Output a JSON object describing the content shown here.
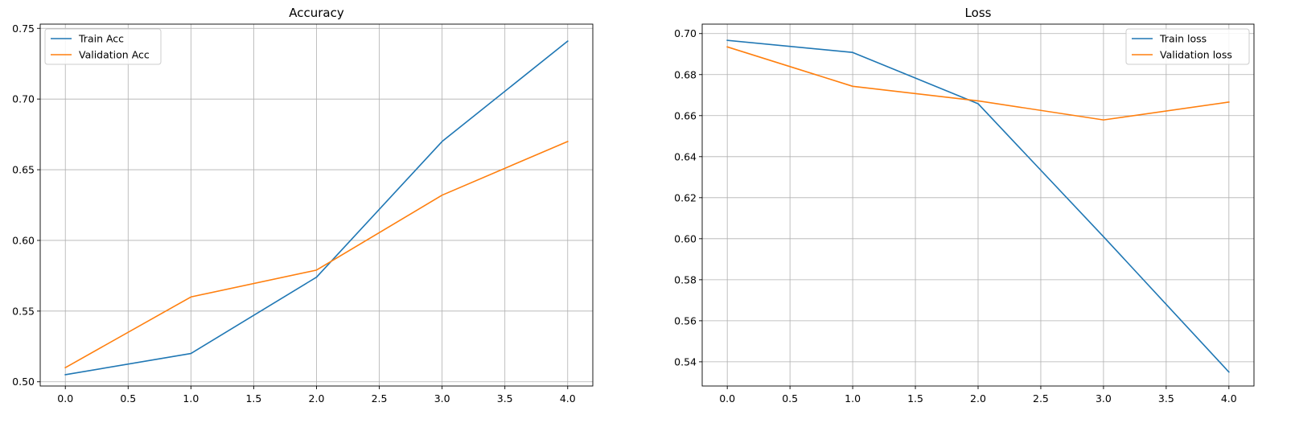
{
  "chart_data": [
    {
      "type": "line",
      "title": "Accuracy",
      "xlabel": "",
      "ylabel": "",
      "x": [
        0,
        1,
        2,
        3,
        4
      ],
      "series": [
        {
          "name": "Train Acc",
          "color": "#1f77b4",
          "values": [
            0.505,
            0.52,
            0.574,
            0.67,
            0.741
          ]
        },
        {
          "name": "Validation Acc",
          "color": "#ff7f0e",
          "values": [
            0.51,
            0.56,
            0.579,
            0.632,
            0.67
          ]
        }
      ],
      "xlim": [
        -0.2,
        4.2
      ],
      "ylim": [
        0.497,
        0.753
      ],
      "xticks": [
        0.0,
        0.5,
        1.0,
        1.5,
        2.0,
        2.5,
        3.0,
        3.5,
        4.0
      ],
      "xtick_labels": [
        "0.0",
        "0.5",
        "1.0",
        "1.5",
        "2.0",
        "2.5",
        "3.0",
        "3.5",
        "4.0"
      ],
      "yticks": [
        0.5,
        0.55,
        0.6,
        0.65,
        0.7,
        0.75
      ],
      "ytick_labels": [
        "0.50",
        "0.55",
        "0.60",
        "0.65",
        "0.70",
        "0.75"
      ],
      "grid": true,
      "legend_position": "top-left"
    },
    {
      "type": "line",
      "title": "Loss",
      "xlabel": "",
      "ylabel": "",
      "x": [
        0,
        1,
        2,
        3,
        4
      ],
      "series": [
        {
          "name": "Train loss",
          "color": "#1f77b4",
          "values": [
            0.6967,
            0.6908,
            0.6658,
            0.601,
            0.535
          ]
        },
        {
          "name": "Validation loss",
          "color": "#ff7f0e",
          "values": [
            0.6935,
            0.6743,
            0.6672,
            0.6579,
            0.6666
          ]
        }
      ],
      "xlim": [
        -0.2,
        4.2
      ],
      "ylim": [
        0.5282,
        0.7046
      ],
      "xticks": [
        0.0,
        0.5,
        1.0,
        1.5,
        2.0,
        2.5,
        3.0,
        3.5,
        4.0
      ],
      "xtick_labels": [
        "0.0",
        "0.5",
        "1.0",
        "1.5",
        "2.0",
        "2.5",
        "3.0",
        "3.5",
        "4.0"
      ],
      "yticks": [
        0.54,
        0.56,
        0.58,
        0.6,
        0.62,
        0.64,
        0.66,
        0.68,
        0.7
      ],
      "ytick_labels": [
        "0.54",
        "0.56",
        "0.58",
        "0.60",
        "0.62",
        "0.64",
        "0.66",
        "0.68",
        "0.70"
      ],
      "grid": true,
      "legend_position": "top-right"
    }
  ]
}
